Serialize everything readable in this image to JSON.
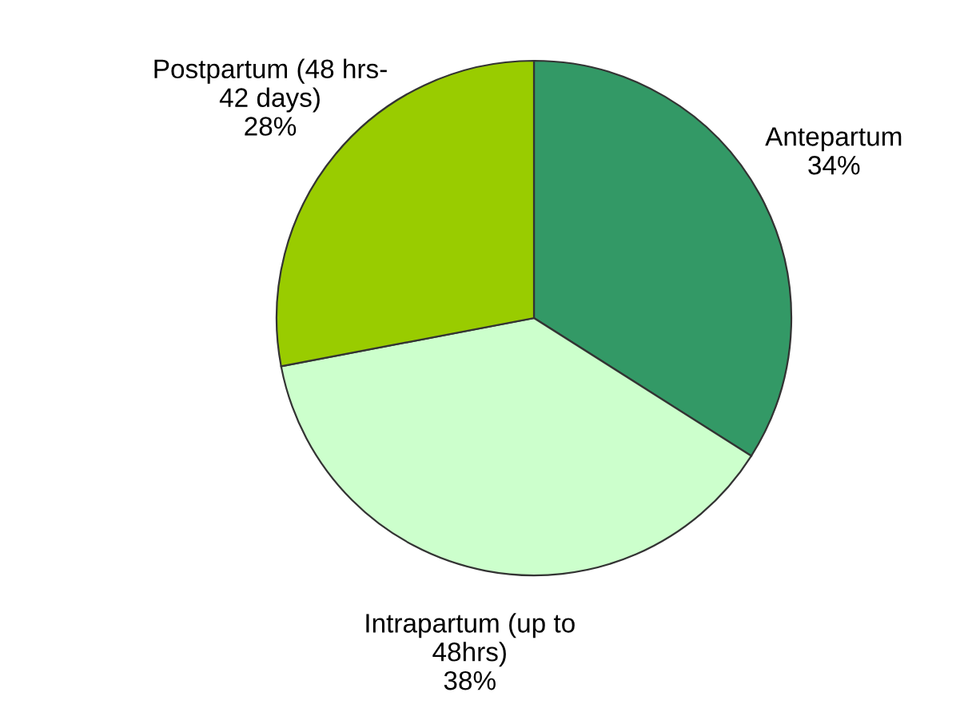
{
  "chart_data": {
    "type": "pie",
    "categories": [
      "Antepartum",
      "Intrapartum (up to\n48hrs)",
      "Postpartum (48 hrs-\n42 days)"
    ],
    "values": [
      34,
      38,
      28
    ],
    "colors": [
      "#339966",
      "#ccffcc",
      "#99cc00"
    ],
    "value_labels": [
      "34%",
      "38%",
      "28%"
    ],
    "legend": false
  }
}
